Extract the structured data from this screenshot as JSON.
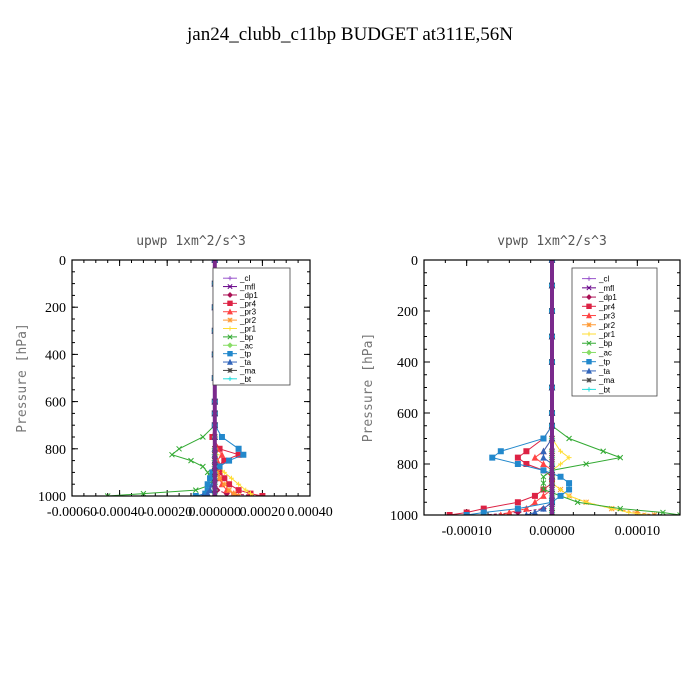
{
  "figure_title": "jan24_clubb_c11bp  BUDGET at311E,56N",
  "chart_data": [
    {
      "type": "line",
      "title": "upwp   1xm^2/s^3",
      "ylabel": "Pressure [hPa]",
      "xlabel": "",
      "ylim": [
        1000,
        0
      ],
      "y_inverted": true,
      "xlim": [
        -0.0006,
        0.0004
      ],
      "xticks": [
        -0.0006,
        -0.0004,
        -0.0002,
        0.0,
        0.0002,
        0.0004
      ],
      "xtick_labels": [
        "-0.00060",
        "-0.00040",
        "-0.00020",
        "0.000000",
        "0.00020",
        "0.00040"
      ],
      "yticks": [
        0,
        200,
        400,
        600,
        800,
        1000
      ],
      "ytick_labels": [
        "0",
        "200",
        "400",
        "600",
        "800",
        "1000"
      ],
      "legend_position": "top-right",
      "y": [
        0,
        100,
        200,
        300,
        400,
        500,
        600,
        650,
        700,
        750,
        800,
        825,
        850,
        875,
        900,
        925,
        950,
        975,
        990,
        1000
      ],
      "series": [
        {
          "name": "_cl",
          "color": "#9955cc",
          "values": [
            0,
            0,
            0,
            0,
            0,
            0,
            0,
            0,
            0,
            0,
            0,
            0,
            0,
            0,
            0,
            0,
            0,
            0,
            0,
            0
          ]
        },
        {
          "name": "_mfl",
          "color": "#660088",
          "values": [
            0,
            0,
            0,
            0,
            0,
            0,
            0,
            0,
            0,
            0,
            0,
            0,
            0,
            0,
            0,
            0,
            0,
            0,
            0,
            0
          ]
        },
        {
          "name": "_dp1",
          "color": "#aa1155",
          "values": [
            0,
            0,
            0,
            0,
            0,
            0,
            0,
            0,
            0,
            0,
            0,
            0,
            0,
            0,
            0,
            0,
            0,
            1e-05,
            5e-05,
            0.0002
          ]
        },
        {
          "name": "_pr4",
          "color": "#dd2244",
          "values": [
            0,
            0,
            0,
            0,
            0,
            0,
            0,
            0,
            0,
            -1e-05,
            2e-05,
            0.0001,
            4e-05,
            1e-05,
            2e-05,
            4e-05,
            6e-05,
            0.0001,
            0.00015,
            0.0002
          ]
        },
        {
          "name": "_pr3",
          "color": "#ff4444",
          "values": [
            0,
            0,
            0,
            0,
            0,
            0,
            0,
            0,
            0,
            0,
            1e-05,
            3e-05,
            1e-05,
            0,
            1e-05,
            2e-05,
            3e-05,
            5e-05,
            8e-05,
            0.0001
          ]
        },
        {
          "name": "_pr2",
          "color": "#ff9933",
          "values": [
            0,
            0,
            0,
            0,
            0,
            0,
            0,
            0,
            0,
            0,
            0,
            0,
            0,
            0,
            1e-05,
            2e-05,
            4e-05,
            6e-05,
            8e-05,
            0.0001
          ]
        },
        {
          "name": "_pr1",
          "color": "#ffdd33",
          "values": [
            0,
            0,
            0,
            0,
            0,
            0,
            0,
            0,
            0,
            0,
            0,
            1e-05,
            0,
            2e-05,
            4e-05,
            7e-05,
            0.0001,
            0.00013,
            0.00015,
            0.00016
          ]
        },
        {
          "name": "_bp",
          "color": "#33aa33",
          "values": [
            0,
            0,
            0,
            0,
            0,
            0,
            0,
            0,
            0,
            -5e-05,
            -0.00015,
            -0.00018,
            -0.0001,
            -5e-05,
            -3e-05,
            -2e-05,
            -1e-05,
            -8e-05,
            -0.0003,
            -0.00045
          ]
        },
        {
          "name": "_ac",
          "color": "#88dd66",
          "values": [
            0,
            0,
            0,
            0,
            0,
            0,
            0,
            0,
            0,
            0,
            0,
            0,
            0,
            0,
            0,
            0,
            0,
            0,
            0,
            0
          ]
        },
        {
          "name": "_tp",
          "color": "#2288cc",
          "values": [
            0,
            0,
            0,
            0,
            0,
            0,
            0,
            0,
            0,
            3e-05,
            0.0001,
            0.00012,
            6e-05,
            2e-05,
            -1e-05,
            -2e-05,
            -3e-05,
            -3e-05,
            -4e-05,
            -8e-05
          ]
        },
        {
          "name": "_ta",
          "color": "#3366bb",
          "values": [
            0,
            0,
            0,
            0,
            0,
            0,
            0,
            0,
            0,
            0,
            0,
            0,
            0,
            0,
            0,
            0,
            -1e-05,
            -2e-05,
            -3e-05,
            -5e-05
          ]
        },
        {
          "name": "_ma",
          "color": "#444444",
          "values": [
            0,
            0,
            0,
            0,
            0,
            0,
            0,
            0,
            0,
            0,
            0,
            0,
            0,
            0,
            0,
            0,
            0,
            0,
            0,
            0
          ]
        },
        {
          "name": "_bt",
          "color": "#22dddd",
          "values": [
            0,
            0,
            0,
            0,
            0,
            0,
            0,
            0,
            0,
            0,
            0,
            0,
            0,
            0,
            0,
            0,
            0,
            0,
            0,
            0
          ]
        }
      ]
    },
    {
      "type": "line",
      "title": "vpwp   1xm^2/s^3",
      "ylabel": "Pressure [hPa]",
      "xlabel": "",
      "ylim": [
        1000,
        0
      ],
      "y_inverted": true,
      "xlim": [
        -0.00015,
        0.00015
      ],
      "xticks": [
        -0.0001,
        0.0,
        0.0001
      ],
      "xtick_labels": [
        "-0.00010",
        "0.00000",
        "0.00010"
      ],
      "yticks": [
        0,
        200,
        400,
        600,
        800,
        1000
      ],
      "ytick_labels": [
        "0",
        "200",
        "400",
        "600",
        "800",
        "1000"
      ],
      "legend_position": "top-right",
      "y": [
        0,
        100,
        200,
        300,
        400,
        500,
        600,
        650,
        700,
        750,
        775,
        800,
        825,
        850,
        875,
        900,
        925,
        950,
        975,
        990,
        1000
      ],
      "series": [
        {
          "name": "_cl",
          "color": "#9955cc",
          "values": [
            0,
            0,
            0,
            0,
            0,
            0,
            0,
            0,
            0,
            0,
            0,
            0,
            0,
            0,
            0,
            0,
            0,
            0,
            0,
            0,
            0
          ]
        },
        {
          "name": "_mfl",
          "color": "#660088",
          "values": [
            0,
            0,
            0,
            0,
            0,
            0,
            0,
            0,
            0,
            0,
            0,
            0,
            0,
            0,
            0,
            0,
            0,
            0,
            0,
            0,
            0
          ]
        },
        {
          "name": "_dp1",
          "color": "#aa1155",
          "values": [
            0,
            0,
            0,
            0,
            0,
            0,
            0,
            0,
            0,
            0,
            0,
            0,
            0,
            0,
            0,
            0,
            0,
            0,
            -1e-05,
            -4e-05,
            -8e-05
          ]
        },
        {
          "name": "_pr4",
          "color": "#dd2244",
          "values": [
            0,
            0,
            0,
            0,
            0,
            0,
            0,
            0,
            -1e-05,
            -3e-05,
            -4e-05,
            -3e-05,
            -1e-05,
            0,
            0,
            -1e-05,
            -2e-05,
            -4e-05,
            -8e-05,
            -0.0001,
            -0.00012
          ]
        },
        {
          "name": "_pr3",
          "color": "#ff4444",
          "values": [
            0,
            0,
            0,
            0,
            0,
            0,
            0,
            0,
            0,
            -1e-05,
            -2e-05,
            -1e-05,
            0,
            0,
            0,
            0,
            -1e-05,
            -2e-05,
            -3e-05,
            -5e-05,
            -6e-05
          ]
        },
        {
          "name": "_pr2",
          "color": "#ff9933",
          "values": [
            0,
            0,
            0,
            0,
            0,
            0,
            0,
            0,
            0,
            0,
            0,
            0,
            0,
            0,
            0,
            1e-05,
            2e-05,
            4e-05,
            7e-05,
            0.0001,
            0.00012
          ]
        },
        {
          "name": "_pr1",
          "color": "#ffdd33",
          "values": [
            0,
            0,
            0,
            0,
            0,
            0,
            0,
            0,
            0,
            1e-05,
            2e-05,
            1e-05,
            0,
            0,
            0,
            1e-05,
            2e-05,
            4e-05,
            7e-05,
            9e-05,
            0.00011
          ]
        },
        {
          "name": "_bp",
          "color": "#33aa33",
          "values": [
            0,
            0,
            0,
            0,
            0,
            0,
            0,
            0,
            2e-05,
            6e-05,
            8e-05,
            4e-05,
            0,
            -1e-05,
            -1e-05,
            -1e-05,
            1e-05,
            3e-05,
            8e-05,
            0.00013,
            0.00015
          ]
        },
        {
          "name": "_ac",
          "color": "#88dd66",
          "values": [
            0,
            0,
            0,
            0,
            0,
            0,
            0,
            0,
            0,
            0,
            0,
            0,
            0,
            0,
            0,
            0,
            0,
            0,
            0,
            0,
            0
          ]
        },
        {
          "name": "_tp",
          "color": "#2288cc",
          "values": [
            0,
            0,
            0,
            0,
            0,
            0,
            0,
            0,
            -1e-05,
            -6e-05,
            -7e-05,
            -4e-05,
            -1e-05,
            1e-05,
            2e-05,
            2e-05,
            1e-05,
            0,
            -4e-05,
            -8e-05,
            -0.0001
          ]
        },
        {
          "name": "_ta",
          "color": "#3366bb",
          "values": [
            0,
            0,
            0,
            0,
            0,
            0,
            0,
            0,
            0,
            -1e-05,
            -1e-05,
            0,
            0,
            0,
            0,
            0,
            0,
            0,
            -1e-05,
            -2e-05,
            -3e-05
          ]
        },
        {
          "name": "_ma",
          "color": "#444444",
          "values": [
            0,
            0,
            0,
            0,
            0,
            0,
            0,
            0,
            0,
            0,
            0,
            0,
            0,
            0,
            0,
            0,
            0,
            0,
            0,
            0,
            0
          ]
        },
        {
          "name": "_bt",
          "color": "#22dddd",
          "values": [
            0,
            0,
            0,
            0,
            0,
            0,
            0,
            0,
            0,
            0,
            0,
            0,
            0,
            0,
            0,
            0,
            0,
            0,
            0,
            0,
            0
          ]
        }
      ]
    }
  ]
}
